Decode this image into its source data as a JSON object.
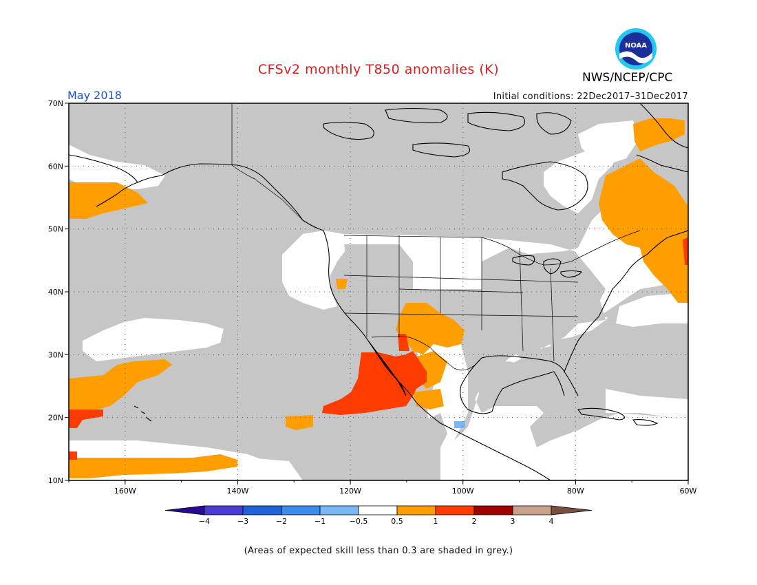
{
  "title": "CFSv2 monthly T850 anomalies (K)",
  "month": "May 2018",
  "initial_conditions": "Initial conditions: 22Dec2017–31Dec2017",
  "agency": "NWS/NCEP/CPC",
  "logo_text": "NOAA",
  "footnote": "(Areas of expected skill less than 0.3 are shaded in grey.)",
  "map": {
    "lon_range": [
      -170,
      -60
    ],
    "lat_range": [
      10,
      70
    ],
    "lat_ticks": [
      {
        "value": 70,
        "label": "70N"
      },
      {
        "value": 60,
        "label": "60N"
      },
      {
        "value": 50,
        "label": "50N"
      },
      {
        "value": 40,
        "label": "40N"
      },
      {
        "value": 30,
        "label": "30N"
      },
      {
        "value": 20,
        "label": "20N"
      },
      {
        "value": 10,
        "label": "10N"
      }
    ],
    "lon_ticks": [
      {
        "value": -160,
        "label": "160W"
      },
      {
        "value": -140,
        "label": "140W"
      },
      {
        "value": -120,
        "label": "120W"
      },
      {
        "value": -100,
        "label": "100W"
      },
      {
        "value": -80,
        "label": "80W"
      },
      {
        "value": -60,
        "label": "60W"
      }
    ],
    "grid": "dotted",
    "colors": {
      "grey_skill_mask": "#c6c6c6",
      "neutral": "#ffffff",
      "anom_0.5_1": "#ff9e00",
      "anom_1_2": "#ff3c00",
      "anom_neg_1_neg_0.5": "#7ab8f5",
      "coast": "#000000"
    }
  },
  "colorbar": {
    "labels": [
      "−4",
      "−3",
      "−2",
      "−1",
      "−0.5",
      "0.5",
      "1",
      "2",
      "3",
      "4"
    ],
    "colors": [
      "#2a0a90",
      "#4a3ad4",
      "#1e64d8",
      "#3c8cf0",
      "#7ab8f5",
      "#ffffff",
      "#ff9e00",
      "#ff3c00",
      "#a00000",
      "#c8a08c",
      "#785040"
    ]
  }
}
